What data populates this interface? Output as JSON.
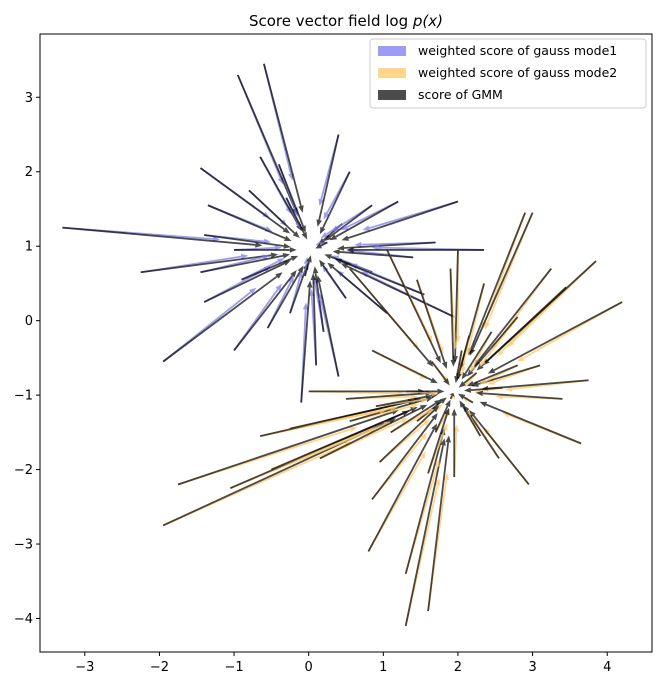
{
  "chart_data": {
    "type": "quiver",
    "title": "Score vector field log p(x)",
    "title_prefix": "Score vector field log",
    "title_math": "p(x)",
    "xlabel": "",
    "ylabel": "",
    "xlim": [
      -3.6,
      4.6
    ],
    "ylim": [
      -4.45,
      3.85
    ],
    "xticks": [
      -3,
      -2,
      -1,
      0,
      1,
      2,
      3,
      4
    ],
    "yticks": [
      -4,
      -3,
      -2,
      -1,
      0,
      1,
      2,
      3
    ],
    "xtick_labels": [
      "−3",
      "−2",
      "−1",
      "0",
      "1",
      "2",
      "3",
      "4"
    ],
    "ytick_labels": [
      "−4",
      "−3",
      "−2",
      "−1",
      "0",
      "1",
      "2",
      "3"
    ],
    "grid": false,
    "legend_position": "top-right",
    "series": [
      {
        "name": "weighted score of gauss mode1",
        "color": "#7b7bf2",
        "alpha": 0.75
      },
      {
        "name": "weighted score of gauss mode2",
        "color": "#ffc864",
        "alpha": 0.75
      },
      {
        "name": "score of GMM",
        "color": "#000000",
        "alpha": 0.7
      }
    ],
    "mode_centers": {
      "mode1": [
        0,
        1
      ],
      "mode2": [
        2,
        -1
      ]
    },
    "arrows": [
      {
        "x": -3.3,
        "y": 1.25,
        "mode": 1
      },
      {
        "x": -2.25,
        "y": 0.65,
        "mode": 1
      },
      {
        "x": -1.45,
        "y": 2.05,
        "mode": 1
      },
      {
        "x": -1.45,
        "y": 0.65,
        "mode": 1
      },
      {
        "x": -1.4,
        "y": 0.25,
        "mode": 1
      },
      {
        "x": -1.4,
        "y": 1.15,
        "mode": 1
      },
      {
        "x": -1.35,
        "y": 1.55,
        "mode": 1
      },
      {
        "x": -0.95,
        "y": 3.3,
        "mode": 1
      },
      {
        "x": -0.6,
        "y": 3.45,
        "mode": 1
      },
      {
        "x": -0.65,
        "y": 2.2,
        "mode": 1
      },
      {
        "x": -0.4,
        "y": 2.1,
        "mode": 1
      },
      {
        "x": -0.8,
        "y": 1.75,
        "mode": 1
      },
      {
        "x": -1.0,
        "y": 0.95,
        "mode": 1
      },
      {
        "x": -0.9,
        "y": 0.55,
        "mode": 1
      },
      {
        "x": -0.3,
        "y": 1.65,
        "mode": 1
      },
      {
        "x": 0.4,
        "y": 2.5,
        "mode": 1
      },
      {
        "x": 0.55,
        "y": 2.0,
        "mode": 1
      },
      {
        "x": 0.45,
        "y": 1.3,
        "mode": 1
      },
      {
        "x": 0.85,
        "y": 1.55,
        "mode": 1
      },
      {
        "x": 1.2,
        "y": 1.6,
        "mode": 1
      },
      {
        "x": 0.85,
        "y": 0.65,
        "mode": 1
      },
      {
        "x": 0.5,
        "y": 0.3,
        "mode": 1
      },
      {
        "x": 0.2,
        "y": -0.15,
        "mode": 1
      },
      {
        "x": -0.25,
        "y": 0.1,
        "mode": 1
      },
      {
        "x": -0.55,
        "y": -0.1,
        "mode": 1
      },
      {
        "x": -1.0,
        "y": -0.4,
        "mode": 1
      },
      {
        "x": -1.95,
        "y": -0.55,
        "mode": 1
      },
      {
        "x": 0.1,
        "y": -0.6,
        "mode": 1
      },
      {
        "x": -0.1,
        "y": -1.1,
        "mode": 1
      },
      {
        "x": 0.4,
        "y": -0.75,
        "mode": 1
      },
      {
        "x": 1.4,
        "y": 0.85,
        "mode": 1
      },
      {
        "x": 1.05,
        "y": 0.1,
        "mode": 1
      },
      {
        "x": 1.55,
        "y": 0.35,
        "mode": 1
      },
      {
        "x": 1.95,
        "y": 0.05,
        "mode": 1
      },
      {
        "x": 2.0,
        "y": 1.6,
        "mode": 1
      },
      {
        "x": 1.7,
        "y": 1.05,
        "mode": 1
      },
      {
        "x": 2.35,
        "y": 0.95,
        "mode": 1
      },
      {
        "x": 0.25,
        "y": 1.05,
        "mode": 1
      },
      {
        "x": -0.05,
        "y": 0.6,
        "mode": 1
      },
      {
        "x": 2.9,
        "y": 1.45,
        "mode": 2
      },
      {
        "x": 3.0,
        "y": 1.45,
        "mode": 2
      },
      {
        "x": 3.45,
        "y": 0.45,
        "mode": 2
      },
      {
        "x": 3.85,
        "y": 0.8,
        "mode": 2
      },
      {
        "x": 4.2,
        "y": 0.25,
        "mode": 2
      },
      {
        "x": 3.25,
        "y": 0.7,
        "mode": 2
      },
      {
        "x": 2.8,
        "y": 0.05,
        "mode": 2
      },
      {
        "x": 3.75,
        "y": -0.8,
        "mode": 2
      },
      {
        "x": 3.65,
        "y": -1.65,
        "mode": 2
      },
      {
        "x": 3.1,
        "y": -0.6,
        "mode": 2
      },
      {
        "x": 2.95,
        "y": -2.2,
        "mode": 2
      },
      {
        "x": 2.55,
        "y": -1.85,
        "mode": 2
      },
      {
        "x": 2.3,
        "y": -1.55,
        "mode": 2
      },
      {
        "x": 1.6,
        "y": -3.9,
        "mode": 2
      },
      {
        "x": 1.3,
        "y": -4.1,
        "mode": 2
      },
      {
        "x": 1.3,
        "y": -3.4,
        "mode": 2
      },
      {
        "x": 0.8,
        "y": -3.1,
        "mode": 2
      },
      {
        "x": 0.85,
        "y": -2.4,
        "mode": 2
      },
      {
        "x": 1.95,
        "y": -2.1,
        "mode": 2
      },
      {
        "x": 1.7,
        "y": -1.5,
        "mode": 2
      },
      {
        "x": -1.95,
        "y": -2.75,
        "mode": 2
      },
      {
        "x": -1.75,
        "y": -2.2,
        "mode": 2
      },
      {
        "x": -1.05,
        "y": -2.25,
        "mode": 2
      },
      {
        "x": -0.5,
        "y": -2.0,
        "mode": 2
      },
      {
        "x": 0.15,
        "y": -1.85,
        "mode": 2
      },
      {
        "x": 0.55,
        "y": -1.35,
        "mode": 2
      },
      {
        "x": -0.65,
        "y": -1.55,
        "mode": 2
      },
      {
        "x": -0.25,
        "y": -1.45,
        "mode": 2
      },
      {
        "x": 0.0,
        "y": -0.95,
        "mode": 2
      },
      {
        "x": 0.5,
        "y": -1.05,
        "mode": 2
      },
      {
        "x": 0.9,
        "y": -1.15,
        "mode": 2
      },
      {
        "x": 0.85,
        "y": -0.4,
        "mode": 2
      },
      {
        "x": 1.3,
        "y": -0.95,
        "mode": 2
      },
      {
        "x": 0.55,
        "y": 0.7,
        "mode": 2
      },
      {
        "x": 1.05,
        "y": 0.95,
        "mode": 2
      },
      {
        "x": 1.45,
        "y": 0.55,
        "mode": 2
      },
      {
        "x": 2.0,
        "y": 0.95,
        "mode": 2
      },
      {
        "x": 2.35,
        "y": 0.5,
        "mode": 2
      },
      {
        "x": 1.9,
        "y": 0.7,
        "mode": 2
      },
      {
        "x": 2.45,
        "y": -0.15,
        "mode": 2
      },
      {
        "x": 2.05,
        "y": -0.4,
        "mode": 2
      },
      {
        "x": 1.65,
        "y": -0.55,
        "mode": 2
      },
      {
        "x": 2.25,
        "y": -0.7,
        "mode": 2
      },
      {
        "x": 1.9,
        "y": -1.05,
        "mode": 2
      },
      {
        "x": 1.45,
        "y": -1.35,
        "mode": 2
      },
      {
        "x": 2.6,
        "y": -0.9,
        "mode": 2
      },
      {
        "x": 2.8,
        "y": -0.6,
        "mode": 2
      },
      {
        "x": 2.2,
        "y": -1.1,
        "mode": 2
      },
      {
        "x": 1.6,
        "y": -2.05,
        "mode": 2
      },
      {
        "x": 1.1,
        "y": -1.5,
        "mode": 2
      },
      {
        "x": 0.95,
        "y": -1.9,
        "mode": 2
      },
      {
        "x": 2.15,
        "y": -0.2,
        "mode": 2
      },
      {
        "x": 3.4,
        "y": -1.05,
        "mode": 2
      }
    ]
  }
}
